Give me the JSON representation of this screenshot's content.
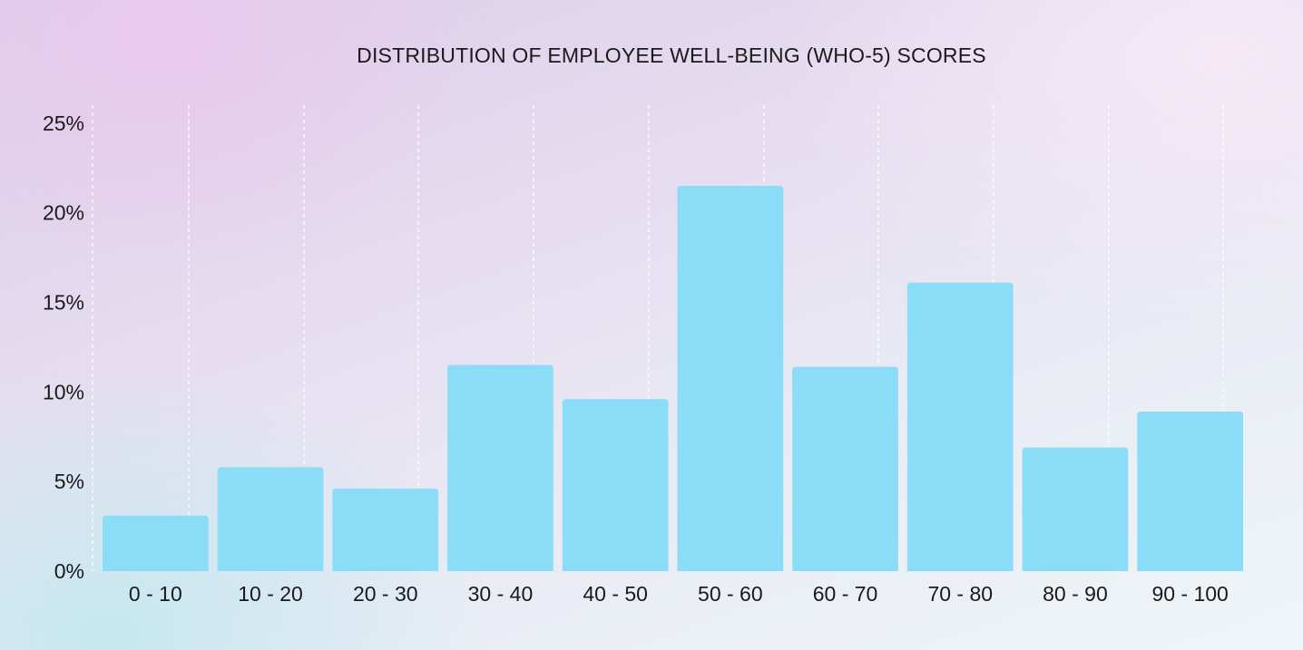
{
  "chart_data": {
    "type": "bar",
    "title": "DISTRIBUTION OF EMPLOYEE WELL-BEING (WHO-5) SCORES",
    "xlabel": "",
    "ylabel": "",
    "categories": [
      "0 - 10",
      "10 - 20",
      "20 - 30",
      "30 - 40",
      "40 - 50",
      "50 - 60",
      "60 - 70",
      "70 - 80",
      "80 - 90",
      "90 - 100"
    ],
    "values": [
      3.1,
      5.8,
      4.6,
      11.5,
      9.6,
      21.5,
      11.4,
      16.1,
      6.9,
      8.9
    ],
    "value_unit": "%",
    "ylim": [
      0,
      26
    ],
    "yticks": [
      0,
      5,
      10,
      15,
      20,
      25
    ],
    "ytick_labels": [
      "0%",
      "5%",
      "10%",
      "15%",
      "20%",
      "25%"
    ],
    "grid": "vertical dashed",
    "legend": "none",
    "bar_color": "#8bdcf6"
  }
}
